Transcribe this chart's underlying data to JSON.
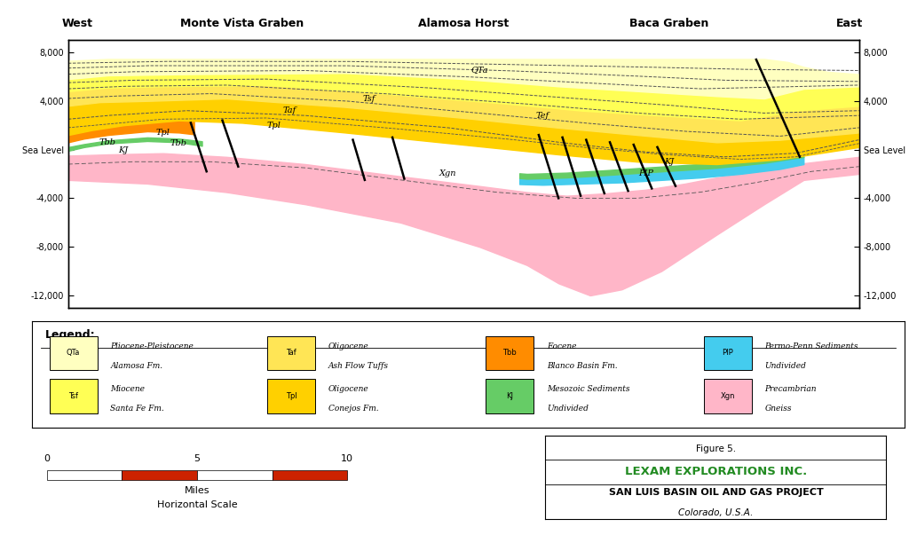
{
  "colors": {
    "QTa": "#FFFFC0",
    "Tsf": "#FFFF55",
    "Taf": "#FFE555",
    "Tpl": "#FFD000",
    "Tbb": "#FF8C00",
    "KJ": "#66CC66",
    "PIP": "#44CCEE",
    "Xgn": "#FFB6C8",
    "background": "#FFFFFF"
  },
  "yticks": [
    8000,
    4000,
    0,
    -4000,
    -8000,
    -12000
  ],
  "ytick_labels_left": [
    "8,000",
    "4,000",
    "Sea Level",
    "-4,000",
    "-8,000",
    "-12,000"
  ],
  "ytick_labels_right": [
    "8,000",
    "4,000",
    "Sea Level",
    "-4,000",
    "-8,000",
    "-12,000"
  ],
  "legend_items": [
    {
      "code": "QTa",
      "label1": "Pliocene-Pleistocene",
      "label2": "Alamosa Fm.",
      "color": "#FFFFC0"
    },
    {
      "code": "Tsf",
      "label1": "Miocene",
      "label2": "Santa Fe Fm.",
      "color": "#FFFF55"
    },
    {
      "code": "Taf",
      "label1": "Oligocene",
      "label2": "Ash Flow Tuffs",
      "color": "#FFE555"
    },
    {
      "code": "Tpl",
      "label1": "Oligocene",
      "label2": "Conejos Fm.",
      "color": "#FFD000"
    },
    {
      "code": "Tbb",
      "label1": "Eocene",
      "label2": "Blanco Basin Fm.",
      "color": "#FF8C00"
    },
    {
      "code": "KJ",
      "label1": "Mesozoic Sediments",
      "label2": "Undivided",
      "color": "#66CC66"
    },
    {
      "code": "PIP",
      "label1": "Permo-Penn Sediments",
      "label2": "Undivided",
      "color": "#44CCEE"
    },
    {
      "code": "Xgn",
      "label1": "Precambrian",
      "label2": "Gneiss",
      "color": "#FFB6C8"
    }
  ],
  "figure5_box": {
    "title": "Figure 5.",
    "company": "LEXAM EXPLORATIONS INC.",
    "project": "SAN LUIS BASIN OIL AND GAS PROJECT",
    "location": "Colorado, U.S.A.",
    "company_color": "#228B22"
  }
}
